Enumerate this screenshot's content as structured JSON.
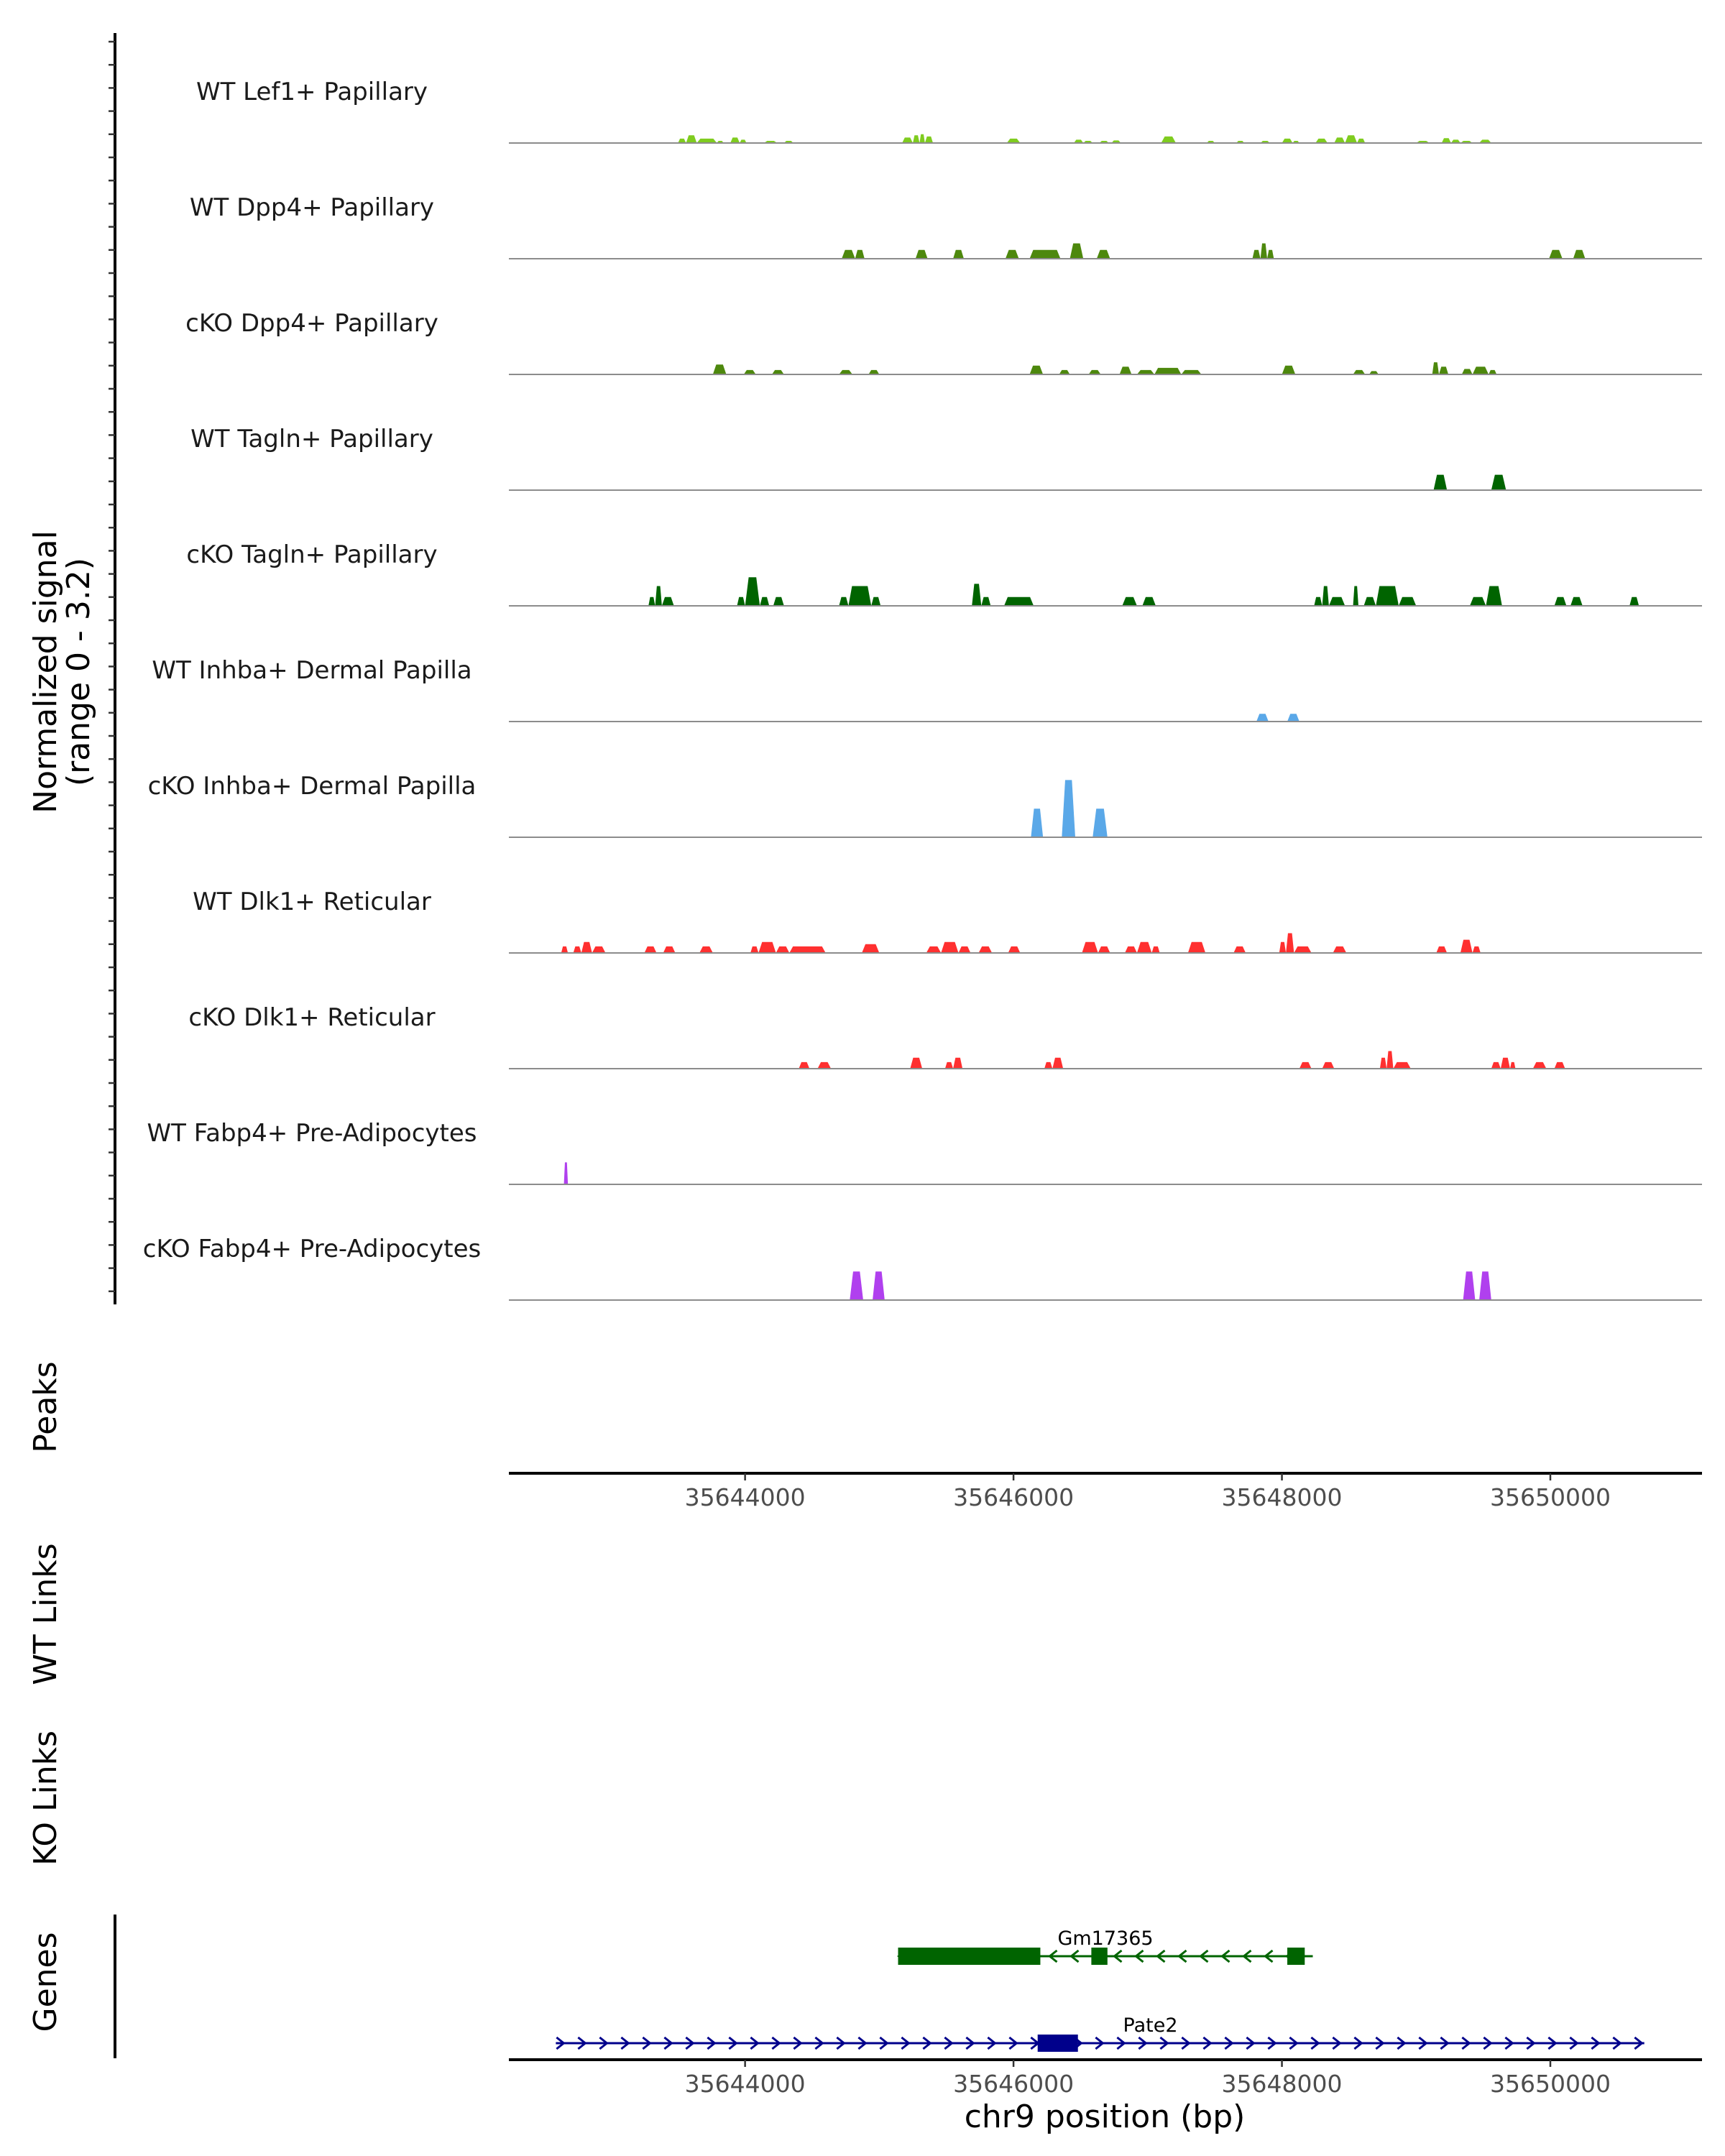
{
  "chart_data": {
    "type": "area",
    "title": "",
    "chromosome": "chr9",
    "xlabel": "chr9 position (bp)",
    "ylabel_line1": "Normalized signal",
    "ylabel_line2": "(range 0 - 3.2)",
    "y_range": [
      0,
      3.2
    ],
    "x_range": [
      35642240,
      35651130
    ],
    "x_ticks": [
      35644000,
      35646000,
      35648000,
      35650000
    ],
    "x_tick_labels": [
      "35644000",
      "35646000",
      "35648000",
      "35650000"
    ],
    "tracks": [
      {
        "name": "WT Lef1+ Papillary",
        "color": "#7fcc1f",
        "segments": [
          [
            35643500,
            35643560,
            0.2
          ],
          [
            35643560,
            35643640,
            0.35
          ],
          [
            35643640,
            35643790,
            0.2
          ],
          [
            35643790,
            35643840,
            0.1
          ],
          [
            35643890,
            35643960,
            0.25
          ],
          [
            35643960,
            35644010,
            0.15
          ],
          [
            35644140,
            35644240,
            0.1
          ],
          [
            35644290,
            35644360,
            0.1
          ],
          [
            35645170,
            35645250,
            0.25
          ],
          [
            35645250,
            35645300,
            0.35
          ],
          [
            35645300,
            35645340,
            0.4
          ],
          [
            35645340,
            35645400,
            0.3
          ],
          [
            35645950,
            35646050,
            0.2
          ],
          [
            35646450,
            35646520,
            0.15
          ],
          [
            35646520,
            35646590,
            0.1
          ],
          [
            35646640,
            35646710,
            0.1
          ],
          [
            35646730,
            35646800,
            0.12
          ],
          [
            35647100,
            35647210,
            0.3
          ],
          [
            35647440,
            35647500,
            0.1
          ],
          [
            35647660,
            35647720,
            0.1
          ],
          [
            35647840,
            35647910,
            0.1
          ],
          [
            35648000,
            35648080,
            0.2
          ],
          [
            35648080,
            35648130,
            0.1
          ],
          [
            35648250,
            35648340,
            0.2
          ],
          [
            35648390,
            35648470,
            0.25
          ],
          [
            35648470,
            35648560,
            0.35
          ],
          [
            35648560,
            35648620,
            0.2
          ],
          [
            35649000,
            35649100,
            0.1
          ],
          [
            35649190,
            35649260,
            0.22
          ],
          [
            35649260,
            35649330,
            0.15
          ],
          [
            35649330,
            35649420,
            0.1
          ],
          [
            35649470,
            35649560,
            0.15
          ]
        ]
      },
      {
        "name": "WT Dpp4+ Papillary",
        "color": "#4d880d",
        "segments": [
          [
            35644720,
            35644820,
            0.4
          ],
          [
            35644820,
            35644890,
            0.4
          ],
          [
            35645270,
            35645360,
            0.4
          ],
          [
            35645550,
            35645630,
            0.4
          ],
          [
            35645940,
            35646040,
            0.4
          ],
          [
            35646120,
            35646350,
            0.4
          ],
          [
            35646420,
            35646520,
            0.7
          ],
          [
            35646620,
            35646720,
            0.4
          ],
          [
            35647780,
            35647840,
            0.4
          ],
          [
            35647840,
            35647890,
            0.7
          ],
          [
            35647890,
            35647940,
            0.4
          ],
          [
            35649990,
            35650090,
            0.4
          ],
          [
            35650170,
            35650260,
            0.4
          ]
        ]
      },
      {
        "name": "cKO Dpp4+ Papillary",
        "color": "#4d880d",
        "segments": [
          [
            35643760,
            35643860,
            0.45
          ],
          [
            35643990,
            35644080,
            0.2
          ],
          [
            35644200,
            35644290,
            0.2
          ],
          [
            35644700,
            35644800,
            0.2
          ],
          [
            35644920,
            35645000,
            0.2
          ],
          [
            35646120,
            35646220,
            0.4
          ],
          [
            35646340,
            35646420,
            0.2
          ],
          [
            35646560,
            35646650,
            0.2
          ],
          [
            35646790,
            35646880,
            0.35
          ],
          [
            35646920,
            35647050,
            0.2
          ],
          [
            35647050,
            35647250,
            0.3
          ],
          [
            35647250,
            35647400,
            0.2
          ],
          [
            35648000,
            35648100,
            0.4
          ],
          [
            35648530,
            35648620,
            0.2
          ],
          [
            35648650,
            35648720,
            0.15
          ],
          [
            35649120,
            35649170,
            0.55
          ],
          [
            35649170,
            35649240,
            0.35
          ],
          [
            35649340,
            35649420,
            0.25
          ],
          [
            35649420,
            35649540,
            0.35
          ],
          [
            35649540,
            35649600,
            0.2
          ]
        ]
      },
      {
        "name": "WT Tagln+ Papillary",
        "color": "#006400",
        "segments": [
          [
            35649130,
            35649230,
            0.7
          ],
          [
            35649560,
            35649670,
            0.7
          ]
        ]
      },
      {
        "name": "cKO Tagln+ Papillary",
        "color": "#006400",
        "segments": [
          [
            35643280,
            35643330,
            0.4
          ],
          [
            35643330,
            35643380,
            0.9
          ],
          [
            35643380,
            35643470,
            0.4
          ],
          [
            35643940,
            35644000,
            0.4
          ],
          [
            35644000,
            35644110,
            1.3
          ],
          [
            35644110,
            35644180,
            0.4
          ],
          [
            35644210,
            35644290,
            0.4
          ],
          [
            35644700,
            35644770,
            0.4
          ],
          [
            35644770,
            35644940,
            0.9
          ],
          [
            35644940,
            35645010,
            0.4
          ],
          [
            35645690,
            35645760,
            1.0
          ],
          [
            35645760,
            35645830,
            0.4
          ],
          [
            35645930,
            35646150,
            0.4
          ],
          [
            35646810,
            35646920,
            0.4
          ],
          [
            35646960,
            35647060,
            0.4
          ],
          [
            35648240,
            35648300,
            0.4
          ],
          [
            35648300,
            35648350,
            0.9
          ],
          [
            35648350,
            35648470,
            0.4
          ],
          [
            35648530,
            35648570,
            0.9
          ],
          [
            35648610,
            35648700,
            0.4
          ],
          [
            35648700,
            35648870,
            0.9
          ],
          [
            35648870,
            35649000,
            0.4
          ],
          [
            35649400,
            35649520,
            0.4
          ],
          [
            35649520,
            35649640,
            0.9
          ],
          [
            35650030,
            35650120,
            0.4
          ],
          [
            35650150,
            35650240,
            0.4
          ],
          [
            35650590,
            35650660,
            0.4
          ]
        ]
      },
      {
        "name": "WT Inhba+ Dermal Papilla",
        "color": "#5aa8e8",
        "segments": [
          [
            35647810,
            35647900,
            0.35
          ],
          [
            35648040,
            35648130,
            0.35
          ]
        ]
      },
      {
        "name": "cKO Inhba+ Dermal Papilla",
        "color": "#5aa8e8",
        "segments": [
          [
            35646130,
            35646220,
            1.3
          ],
          [
            35646360,
            35646460,
            2.6
          ],
          [
            35646590,
            35646700,
            1.3
          ]
        ]
      },
      {
        "name": "WT Dlk1+ Reticular",
        "color": "#ff3030",
        "segments": [
          [
            35642630,
            35642680,
            0.3
          ],
          [
            35642720,
            35642780,
            0.3
          ],
          [
            35642780,
            35642860,
            0.5
          ],
          [
            35642860,
            35642960,
            0.3
          ],
          [
            35643250,
            35643340,
            0.3
          ],
          [
            35643390,
            35643480,
            0.3
          ],
          [
            35643660,
            35643760,
            0.3
          ],
          [
            35644040,
            35644100,
            0.3
          ],
          [
            35644100,
            35644230,
            0.5
          ],
          [
            35644230,
            35644330,
            0.3
          ],
          [
            35644330,
            35644600,
            0.3
          ],
          [
            35644870,
            35645000,
            0.4
          ],
          [
            35645350,
            35645460,
            0.3
          ],
          [
            35645460,
            35645590,
            0.5
          ],
          [
            35645590,
            35645680,
            0.3
          ],
          [
            35645740,
            35645840,
            0.3
          ],
          [
            35645960,
            35646050,
            0.3
          ],
          [
            35646510,
            35646630,
            0.5
          ],
          [
            35646630,
            35646720,
            0.3
          ],
          [
            35646830,
            35646920,
            0.3
          ],
          [
            35646920,
            35647030,
            0.5
          ],
          [
            35647030,
            35647090,
            0.3
          ],
          [
            35647300,
            35647430,
            0.5
          ],
          [
            35647640,
            35647730,
            0.3
          ],
          [
            35647980,
            35648030,
            0.5
          ],
          [
            35648030,
            35648090,
            0.9
          ],
          [
            35648090,
            35648220,
            0.3
          ],
          [
            35648380,
            35648480,
            0.3
          ],
          [
            35649150,
            35649230,
            0.3
          ],
          [
            35649330,
            35649420,
            0.6
          ],
          [
            35649420,
            35649480,
            0.3
          ]
        ]
      },
      {
        "name": "cKO Dlk1+ Reticular",
        "color": "#ff3030",
        "segments": [
          [
            35644400,
            35644480,
            0.3
          ],
          [
            35644540,
            35644640,
            0.3
          ],
          [
            35645230,
            35645320,
            0.5
          ],
          [
            35645490,
            35645550,
            0.3
          ],
          [
            35645550,
            35645620,
            0.5
          ],
          [
            35646230,
            35646290,
            0.3
          ],
          [
            35646290,
            35646370,
            0.5
          ],
          [
            35648130,
            35648220,
            0.3
          ],
          [
            35648300,
            35648390,
            0.3
          ],
          [
            35648730,
            35648780,
            0.5
          ],
          [
            35648780,
            35648830,
            0.8
          ],
          [
            35648830,
            35648960,
            0.3
          ],
          [
            35649560,
            35649630,
            0.3
          ],
          [
            35649630,
            35649700,
            0.5
          ],
          [
            35649700,
            35649740,
            0.3
          ],
          [
            35649870,
            35649970,
            0.3
          ],
          [
            35650030,
            35650110,
            0.3
          ]
        ]
      },
      {
        "name": "WT Fabp4+ Pre-Adipocytes",
        "color": "#b040ee",
        "segments": [
          [
            35642650,
            35642680,
            1.0
          ]
        ]
      },
      {
        "name": "cKO Fabp4+ Pre-Adipocytes",
        "color": "#b040ee",
        "segments": [
          [
            35644780,
            35644880,
            1.3
          ],
          [
            35644950,
            35645040,
            1.3
          ],
          [
            35649350,
            35649440,
            1.3
          ],
          [
            35649470,
            35649560,
            1.3
          ]
        ]
      }
    ],
    "panels": {
      "peaks": "Peaks",
      "wt_links": "WT Links",
      "ko_links": "KO Links",
      "genes": "Genes"
    },
    "genes": [
      {
        "name": "Gm17365",
        "strand": "-",
        "color": "#006400",
        "start": 35645140,
        "end": 35648230,
        "exons": [
          [
            35645140,
            35646200
          ],
          [
            35646580,
            35646700
          ],
          [
            35648040,
            35648170
          ]
        ]
      },
      {
        "name": "Pate2",
        "strand": "+",
        "color": "#00008b",
        "start": 35642590,
        "end": 35650700,
        "exons": [
          [
            35646180,
            35646480
          ]
        ]
      }
    ]
  }
}
